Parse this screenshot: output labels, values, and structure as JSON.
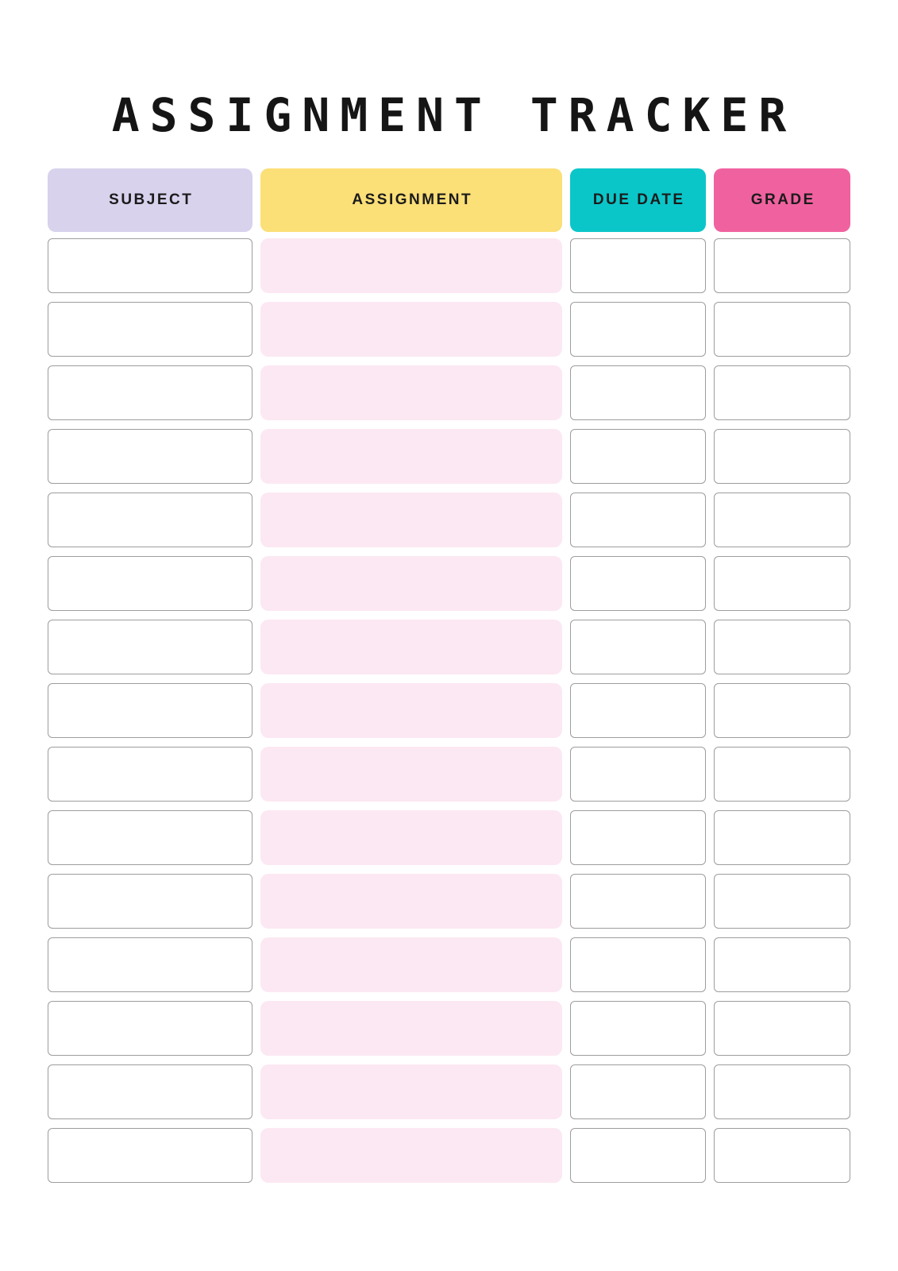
{
  "page": {
    "title": "ASSIGNMENT TRACKER",
    "background_color": "#ffffff",
    "title_color": "#151515"
  },
  "table": {
    "columns": [
      {
        "key": "subject",
        "label": "SUBJECT",
        "color": "#d8d2ed"
      },
      {
        "key": "assignment",
        "label": "ASSIGNMENT",
        "color": "#fbdf77"
      },
      {
        "key": "due_date",
        "label": "DUE DATE",
        "color": "#0ac6c9"
      },
      {
        "key": "grade",
        "label": "GRADE",
        "color": "#f0629f"
      }
    ],
    "cell_colors": {
      "assignment_cell_background": "#fce8f2",
      "plain_cell_background": "#ffffff",
      "plain_cell_border": "#9d9d9d"
    },
    "rows": [
      {
        "subject": "",
        "assignment": "",
        "due_date": "",
        "grade": ""
      },
      {
        "subject": "",
        "assignment": "",
        "due_date": "",
        "grade": ""
      },
      {
        "subject": "",
        "assignment": "",
        "due_date": "",
        "grade": ""
      },
      {
        "subject": "",
        "assignment": "",
        "due_date": "",
        "grade": ""
      },
      {
        "subject": "",
        "assignment": "",
        "due_date": "",
        "grade": ""
      },
      {
        "subject": "",
        "assignment": "",
        "due_date": "",
        "grade": ""
      },
      {
        "subject": "",
        "assignment": "",
        "due_date": "",
        "grade": ""
      },
      {
        "subject": "",
        "assignment": "",
        "due_date": "",
        "grade": ""
      },
      {
        "subject": "",
        "assignment": "",
        "due_date": "",
        "grade": ""
      },
      {
        "subject": "",
        "assignment": "",
        "due_date": "",
        "grade": ""
      },
      {
        "subject": "",
        "assignment": "",
        "due_date": "",
        "grade": ""
      },
      {
        "subject": "",
        "assignment": "",
        "due_date": "",
        "grade": ""
      },
      {
        "subject": "",
        "assignment": "",
        "due_date": "",
        "grade": ""
      },
      {
        "subject": "",
        "assignment": "",
        "due_date": "",
        "grade": ""
      },
      {
        "subject": "",
        "assignment": "",
        "due_date": "",
        "grade": ""
      }
    ]
  }
}
